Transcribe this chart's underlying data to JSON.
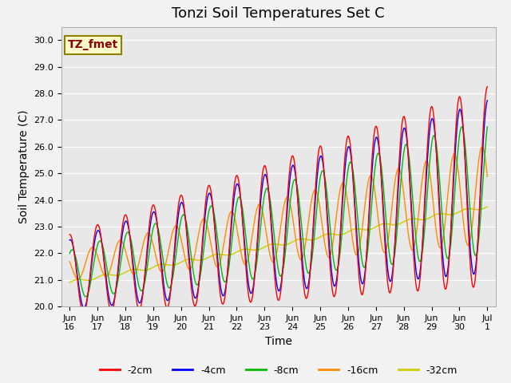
{
  "title": "Tonzi Soil Temperatures Set C",
  "xlabel": "Time",
  "ylabel": "Soil Temperature (C)",
  "ylim": [
    20.0,
    30.5
  ],
  "yticks": [
    20.0,
    21.0,
    22.0,
    23.0,
    24.0,
    25.0,
    26.0,
    27.0,
    28.0,
    29.0,
    30.0
  ],
  "xtick_labels": [
    "Jun\n16",
    "Jun\n17",
    "Jun\n18",
    "Jun\n19",
    "Jun\n20",
    "Jun\n21",
    "Jun\n22",
    "Jun\n23",
    "Jun\n24",
    "Jun\n25",
    "Jun\n26",
    "Jun\n27",
    "Jun\n28",
    "Jun\n29",
    "Jun\n30",
    "Jul\n1"
  ],
  "annotation_text": "TZ_fmet",
  "annotation_color": "#8B0000",
  "annotation_bg": "#FFFFCC",
  "annotation_border": "#8B8000",
  "series_colors": [
    "#FF0000",
    "#0000FF",
    "#00BB00",
    "#FF8C00",
    "#CCCC00"
  ],
  "series_labels": [
    "-2cm",
    "-4cm",
    "-8cm",
    "-16cm",
    "-32cm"
  ],
  "fig_bg": "#F2F2F2",
  "plot_bg": "#E8E8E8",
  "grid_color": "#FFFFFF",
  "title_fontsize": 13,
  "axis_label_fontsize": 10,
  "tick_fontsize": 8,
  "legend_fontsize": 9
}
